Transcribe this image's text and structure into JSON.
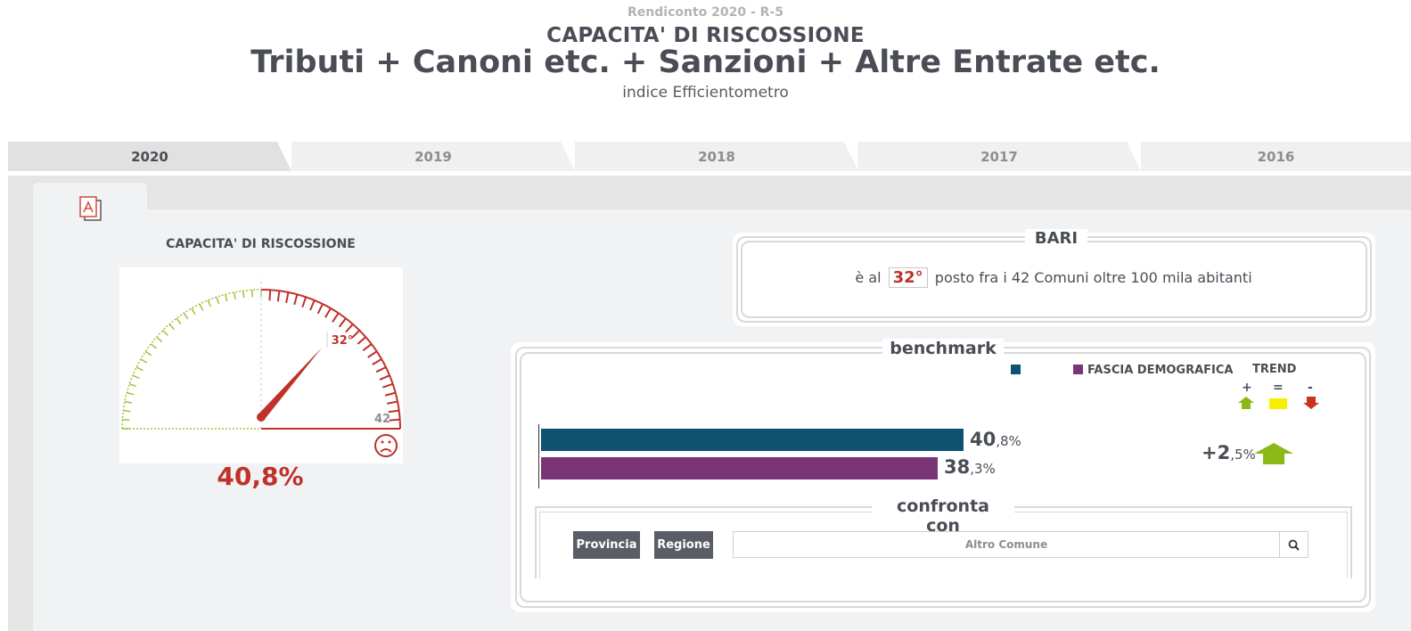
{
  "header": {
    "super": "Rendiconto 2020 - R-5",
    "subtitle": "CAPACITA' DI RISCOSSIONE",
    "title": "Tributi + Canoni etc. + Sanzioni + Altre Entrate etc.",
    "caption": "indice Efficientometro"
  },
  "tabs": [
    {
      "label": "2020",
      "active": true
    },
    {
      "label": "2019",
      "active": false
    },
    {
      "label": "2018",
      "active": false
    },
    {
      "label": "2017",
      "active": false
    },
    {
      "label": "2016",
      "active": false
    }
  ],
  "gauge": {
    "title": "CAPACITA' DI RISCOSSIONE",
    "rank_label": "32°",
    "max_label": "42",
    "rank": 32,
    "max": 42,
    "value": "40,8%",
    "face_icon": "sad-face-icon",
    "colors": {
      "good": "#9fc33b",
      "bad": "#c0312a"
    }
  },
  "rank_card": {
    "city": "BARI",
    "prefix": "è al",
    "rank": "32°",
    "suffix": "posto fra i 42 Comuni oltre 100 mila abitanti"
  },
  "benchmark": {
    "title": "benchmark",
    "legend": [
      {
        "label": "",
        "color": "#0e5170"
      },
      {
        "label": "FASCIA DEMOGRAFICA",
        "color": "#7a3577"
      }
    ],
    "trend": {
      "title": "TREND",
      "plus": "+",
      "equal": "=",
      "minus": "-",
      "value_main": "+2",
      "value_decimal": ",5%",
      "icon": "up-arrow-icon",
      "colors": {
        "up": "#8cb817",
        "equal": "#f7ef00",
        "down": "#c9341c"
      }
    },
    "bars": [
      {
        "main": "40",
        "decimal": ",8%",
        "value": 40.8,
        "color": "#0e5170"
      },
      {
        "main": "38",
        "decimal": ",3%",
        "value": 38.3,
        "color": "#7a3577"
      }
    ],
    "compare": {
      "title": "confronta con",
      "provincia": "Provincia",
      "regione": "Regione",
      "search_placeholder": "Altro Comune"
    }
  }
}
